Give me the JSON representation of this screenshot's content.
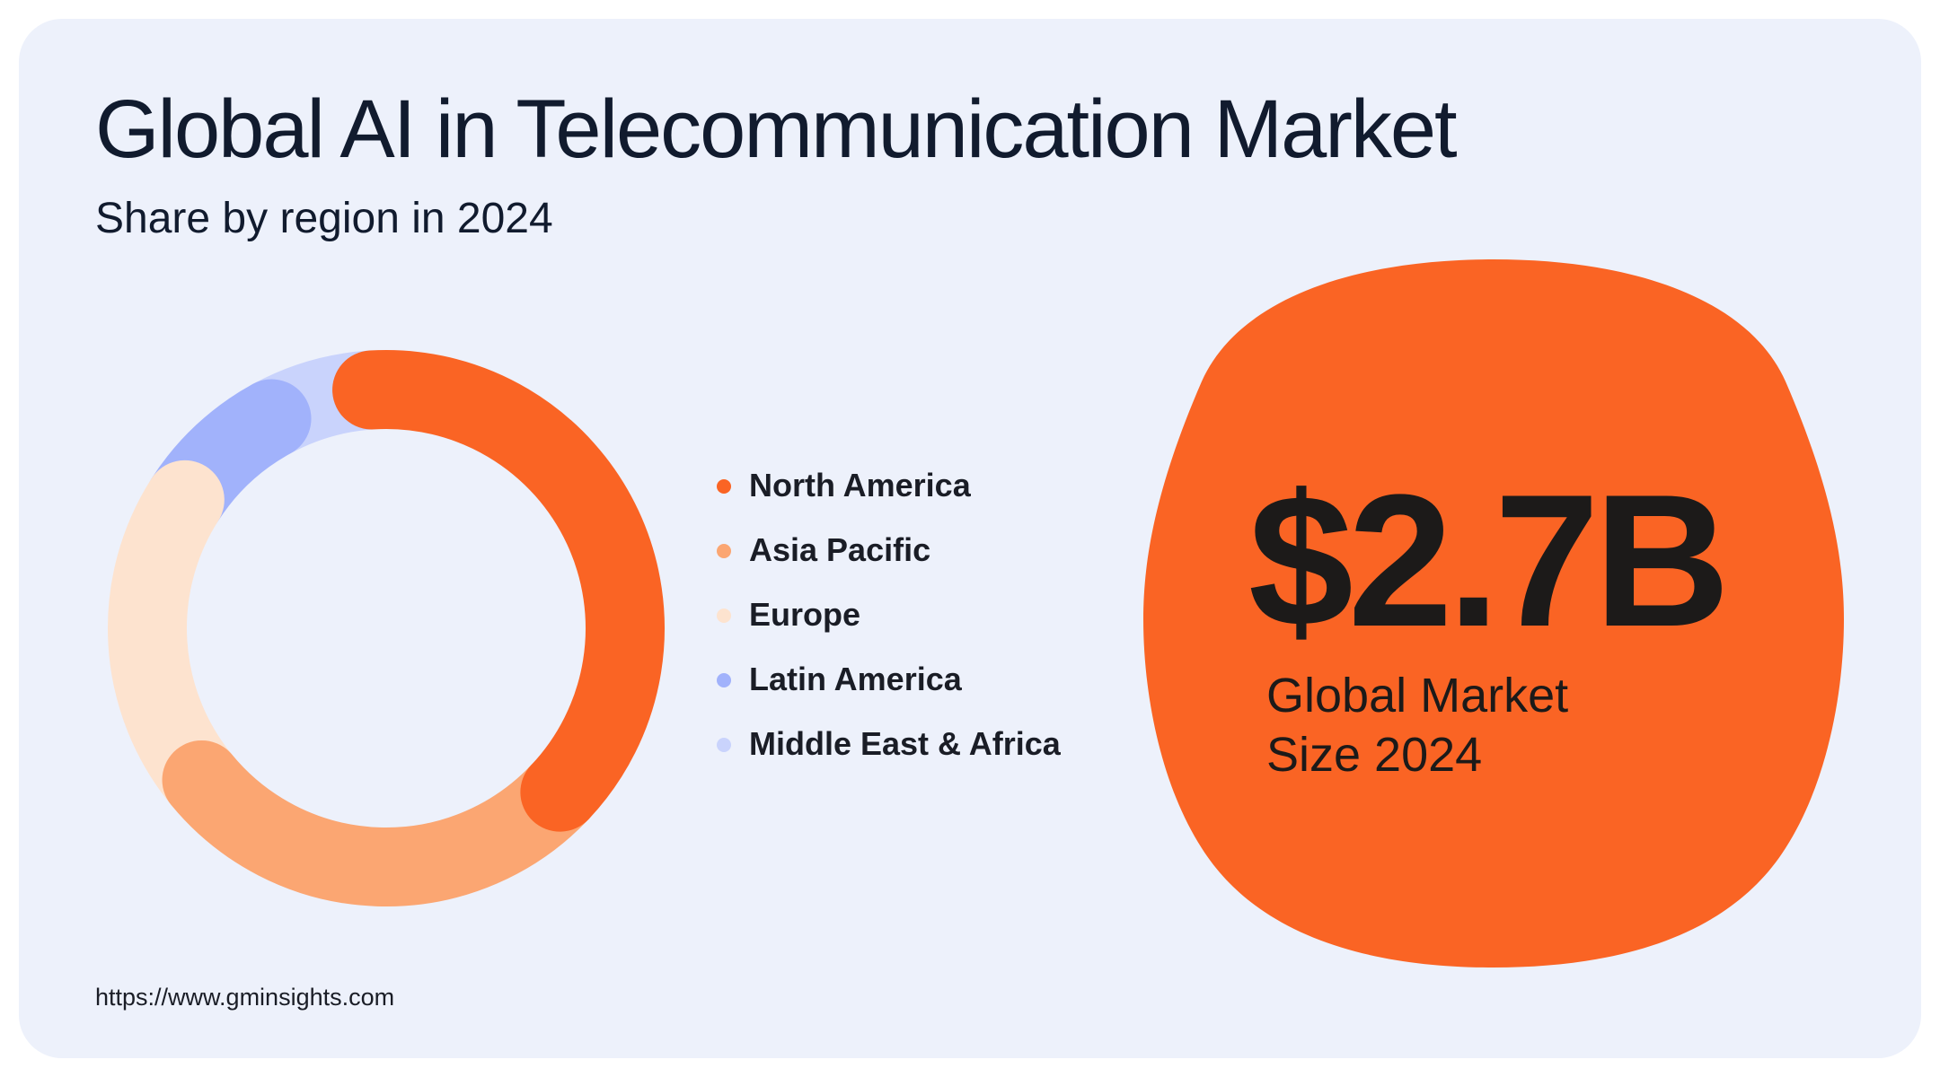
{
  "title": "Global AI in Telecommunication Market",
  "subtitle": "Share by region in 2024",
  "highlight": {
    "value": "$2.7B",
    "label_line1": "Global Market",
    "label_line2": "Size 2024"
  },
  "source": "https://www.gminsights.com",
  "colors": {
    "card_background": "#edf1fb",
    "north_america": "#fa6424",
    "asia_pacific": "#fba672",
    "europe": "#fde3cf",
    "latin_america": "#a1b2fb",
    "middle_east_africa": "#c9d3fc",
    "blob": "#fa6424"
  },
  "chart_data": {
    "type": "pie",
    "variant": "donut",
    "title": "Share by region in 2024",
    "legend_position": "right",
    "categories": [
      "North America",
      "Asia Pacific",
      "Europe",
      "Latin America",
      "Middle East & Africa"
    ],
    "values": [
      38,
      27,
      20,
      8,
      7
    ],
    "unit": "%",
    "colors": [
      "#fa6424",
      "#fba672",
      "#fde3cf",
      "#a1b2fb",
      "#c9d3fc"
    ]
  }
}
